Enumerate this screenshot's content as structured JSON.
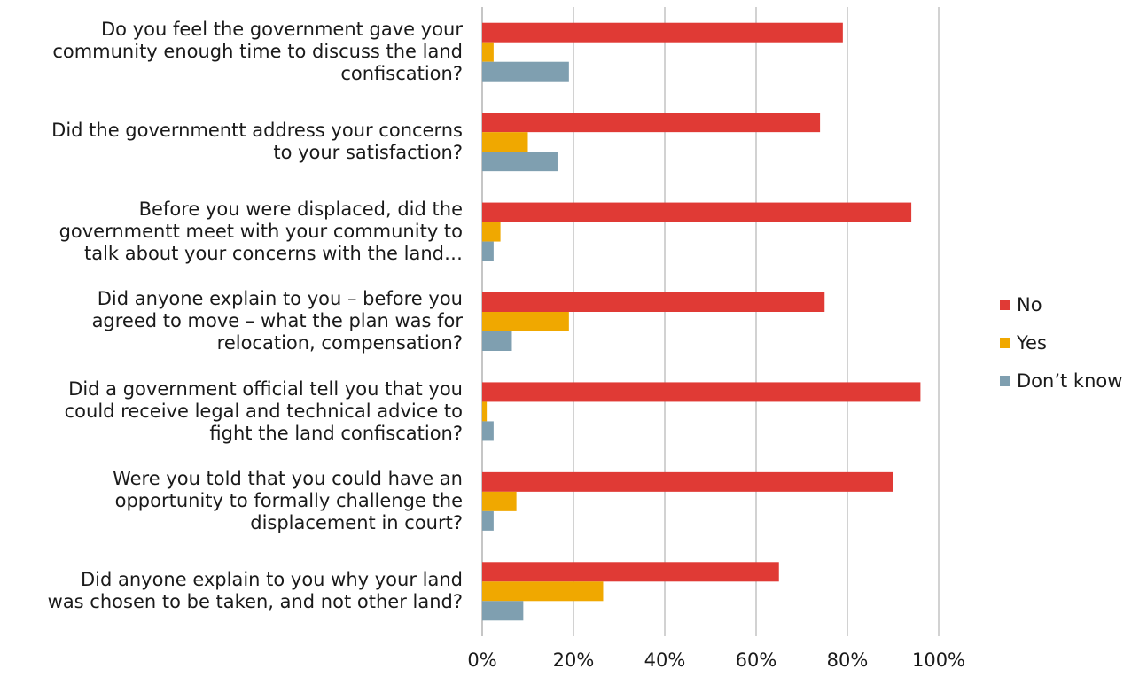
{
  "chart_data": {
    "type": "bar",
    "orientation": "horizontal",
    "categories": [
      "Do you feel the government gave your community enough time to discuss the land confiscation?",
      "Did the governmentt address your concerns to your satisfaction?",
      "Before you were displaced, did the governmentt meet with your community to talk about your concerns with the land…",
      "Did anyone explain to you – before you agreed to move – what the plan was for relocation, compensation?",
      "Did a government official tell you that you could receive legal and technical advice to fight the land confiscation?",
      "Were you told that you could have an opportunity to formally challenge the displacement in court?",
      "Did anyone explain to you why your land was chosen to be taken, and not other land?"
    ],
    "category_lines": [
      [
        "Do you feel the government gave your",
        "community enough time to discuss the land",
        "confiscation?"
      ],
      [
        "Did the governmentt address your concerns",
        "to your satisfaction?"
      ],
      [
        "Before you were displaced, did the",
        "governmentt meet with your community to",
        "talk about your concerns with the land…"
      ],
      [
        "Did anyone explain to you – before you",
        "agreed to move – what the plan was for",
        "relocation, compensation?"
      ],
      [
        "Did a government official tell you that you",
        "could receive legal and technical advice to",
        "fight the land confiscation?"
      ],
      [
        "Were you told that you could have an",
        "opportunity to formally challenge the",
        "displacement in court?"
      ],
      [
        "Did anyone explain to you why your land",
        "was chosen to be taken, and not other land?"
      ]
    ],
    "series": [
      {
        "name": "No",
        "color": "#e03a35",
        "values": [
          79,
          74,
          94,
          75,
          96,
          90,
          65
        ]
      },
      {
        "name": "Yes",
        "color": "#f0a800",
        "values": [
          2.5,
          10,
          4,
          19,
          1,
          7.5,
          26.5
        ]
      },
      {
        "name": "Don’t know",
        "color": "#7f9fb0",
        "values": [
          19,
          16.5,
          2.5,
          6.5,
          2.5,
          2.5,
          9
        ]
      }
    ],
    "xlim": [
      0,
      100
    ],
    "xticks": [
      "0%",
      "20%",
      "40%",
      "60%",
      "80%",
      "100%"
    ],
    "xtick_values": [
      0,
      20,
      40,
      60,
      80,
      100
    ],
    "grid": true,
    "legend_position": "right",
    "title": "",
    "xlabel": "",
    "ylabel": ""
  }
}
